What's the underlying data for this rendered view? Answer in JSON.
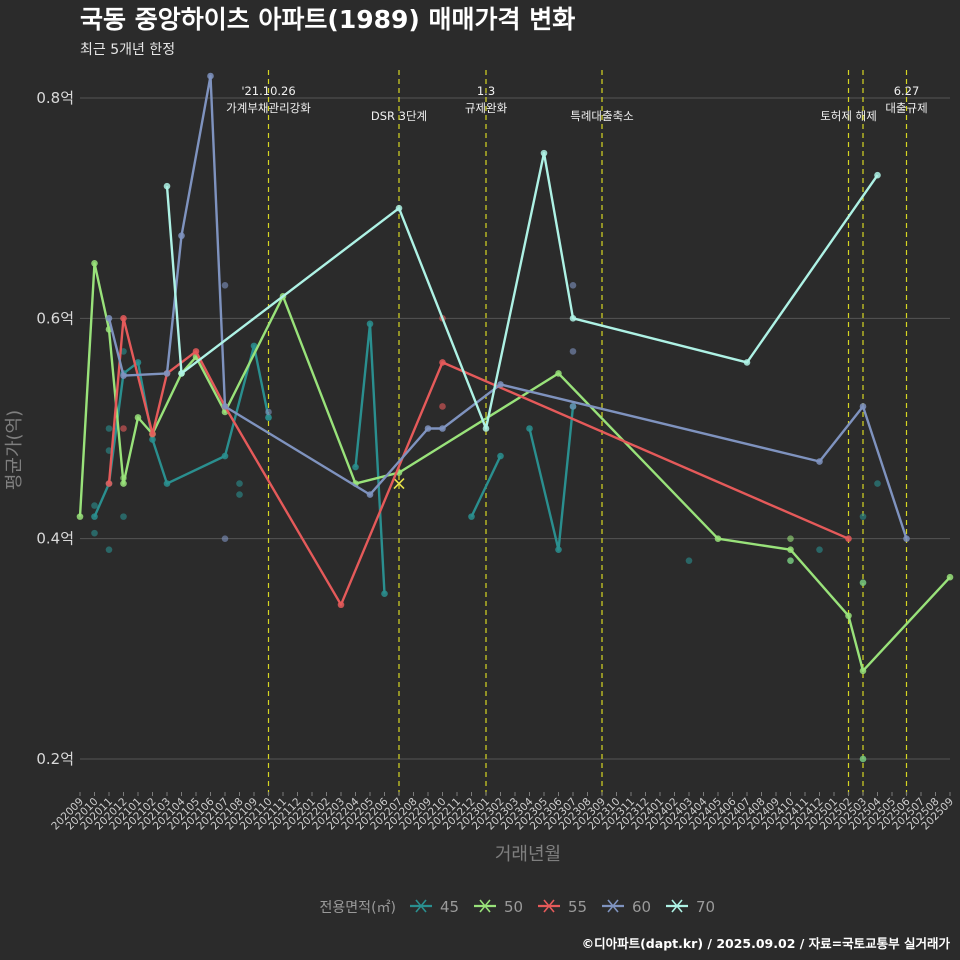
{
  "chart_data": {
    "type": "line",
    "title": "국동 중앙하이츠 아파트(1989) 매매가격 변화",
    "subtitle": "최근 5개년 한정",
    "xlabel": "거래년월",
    "ylabel": "평균가(억)",
    "ylim": [
      0.17,
      0.83
    ],
    "yticks": [
      {
        "value": 0.2,
        "label": "0.2억"
      },
      {
        "value": 0.4,
        "label": "0.4억"
      },
      {
        "value": 0.6,
        "label": "0.6억"
      },
      {
        "value": 0.8,
        "label": "0.8억"
      }
    ],
    "x_months": [
      "202009",
      "202010",
      "202011",
      "202012",
      "202101",
      "202102",
      "202103",
      "202104",
      "202105",
      "202106",
      "202107",
      "202108",
      "202109",
      "202110",
      "202111",
      "202112",
      "202201",
      "202202",
      "202203",
      "202204",
      "202205",
      "202206",
      "202207",
      "202208",
      "202209",
      "202210",
      "202211",
      "202212",
      "202301",
      "202302",
      "202303",
      "202304",
      "202305",
      "202306",
      "202307",
      "202308",
      "202309",
      "202310",
      "202311",
      "202312",
      "202401",
      "202402",
      "202403",
      "202404",
      "202405",
      "202406",
      "202407",
      "202408",
      "202409",
      "202410",
      "202411",
      "202412",
      "202501",
      "202502",
      "202503",
      "202504",
      "202505",
      "202506",
      "202507",
      "202508",
      "202509"
    ],
    "legend_title": "전용면적(㎡)",
    "legend_position": "bottom",
    "grid": true,
    "events": [
      {
        "x": "202110",
        "lines": [
          "'21.10.26",
          "가계부채관리강화"
        ]
      },
      {
        "x": "202207",
        "lines": [
          "DSR 3단계"
        ]
      },
      {
        "x": "202301",
        "lines": [
          "1.3",
          "규제완화"
        ]
      },
      {
        "x": "202309",
        "lines": [
          "특례대출축소"
        ]
      },
      {
        "x": "202502",
        "lines": [
          "토허제 해제"
        ]
      },
      {
        "x": "202503",
        "lines": []
      },
      {
        "x": "202506",
        "lines": [
          "6.27",
          "대출규제"
        ]
      }
    ],
    "series": [
      {
        "name": "45",
        "color": "#2a8f8f",
        "line": [
          [
            "202010",
            0.42
          ],
          [
            "202011",
            0.45
          ],
          [
            "202012",
            0.55
          ],
          [
            "202101",
            0.56
          ],
          [
            "202102",
            0.49
          ],
          [
            "202103",
            0.45
          ],
          [
            "202107",
            0.475
          ],
          [
            "202109",
            0.575
          ],
          [
            "202110",
            0.51
          ],
          null,
          [
            "202204",
            0.465
          ],
          [
            "202205",
            0.595
          ],
          [
            "202206",
            0.35
          ],
          null,
          [
            "202212",
            0.42
          ],
          [
            "202302",
            0.475
          ],
          null,
          [
            "202304",
            0.5
          ],
          [
            "202306",
            0.39
          ],
          [
            "202307",
            0.52
          ]
        ],
        "points": [
          [
            "202010",
            0.43
          ],
          [
            "202010",
            0.405
          ],
          [
            "202011",
            0.5
          ],
          [
            "202011",
            0.48
          ],
          [
            "202011",
            0.39
          ],
          [
            "202012",
            0.42
          ],
          [
            "202012",
            0.57
          ],
          [
            "202108",
            0.45
          ],
          [
            "202108",
            0.44
          ],
          [
            "202110",
            0.51
          ],
          [
            "202403",
            0.38
          ],
          [
            "202410",
            0.38
          ],
          [
            "202412",
            0.39
          ],
          [
            "202503",
            0.42
          ],
          [
            "202503",
            0.36
          ],
          [
            "202503",
            0.2
          ],
          [
            "202504",
            0.45
          ]
        ]
      },
      {
        "name": "50",
        "color": "#99e27a",
        "line": [
          [
            "202009",
            0.42
          ],
          [
            "202010",
            0.65
          ],
          [
            "202011",
            0.59
          ],
          [
            "202012",
            0.45
          ],
          [
            "202101",
            0.51
          ],
          [
            "202102",
            0.495
          ],
          [
            "202104",
            0.55
          ],
          [
            "202105",
            0.565
          ],
          [
            "202107",
            0.515
          ],
          [
            "202111",
            0.62
          ],
          [
            "202204",
            0.45
          ],
          [
            "202207",
            0.46
          ],
          [
            "202306",
            0.55
          ],
          [
            "202405",
            0.4
          ],
          [
            "202410",
            0.39
          ],
          [
            "202502",
            0.33
          ],
          [
            "202503",
            0.28
          ],
          [
            "202509",
            0.365
          ]
        ],
        "points": [
          [
            "202012",
            0.455
          ],
          [
            "202410",
            0.4
          ],
          [
            "202410",
            0.38
          ],
          [
            "202503",
            0.36
          ],
          [
            "202503",
            0.2
          ]
        ],
        "markers": [
          [
            "202207",
            0.45
          ]
        ]
      },
      {
        "name": "55",
        "color": "#e55a5a",
        "line": [
          [
            "202011",
            0.45
          ],
          [
            "202012",
            0.6
          ],
          [
            "202102",
            0.495
          ],
          [
            "202103",
            0.55
          ],
          [
            "202105",
            0.57
          ],
          [
            "202107",
            0.52
          ],
          [
            "202203",
            0.34
          ],
          [
            "202210",
            0.56
          ],
          [
            "202502",
            0.4
          ]
        ],
        "points": [
          [
            "202012",
            0.5
          ],
          [
            "202210",
            0.52
          ],
          [
            "202210",
            0.6
          ]
        ]
      },
      {
        "name": "60",
        "color": "#7f93bf",
        "line": [
          [
            "202011",
            0.6
          ],
          [
            "202012",
            0.548
          ],
          [
            "202103",
            0.55
          ],
          [
            "202104",
            0.675
          ],
          [
            "202106",
            0.82
          ],
          [
            "202107",
            0.52
          ],
          [
            "202205",
            0.44
          ],
          [
            "202209",
            0.5
          ],
          [
            "202210",
            0.5
          ],
          [
            "202302",
            0.54
          ],
          [
            "202412",
            0.47
          ],
          [
            "202503",
            0.52
          ],
          [
            "202506",
            0.4
          ]
        ],
        "points": [
          [
            "202107",
            0.63
          ],
          [
            "202107",
            0.4
          ],
          [
            "202110",
            0.515
          ],
          [
            "202307",
            0.52
          ],
          [
            "202307",
            0.63
          ],
          [
            "202307",
            0.57
          ]
        ]
      },
      {
        "name": "70",
        "color": "#aef2e5",
        "line": [
          [
            "202103",
            0.72
          ],
          [
            "202104",
            0.55
          ],
          [
            "202207",
            0.7
          ],
          [
            "202301",
            0.5
          ],
          [
            "202305",
            0.75
          ],
          [
            "202307",
            0.6
          ],
          [
            "202407",
            0.56
          ],
          [
            "202504",
            0.73
          ]
        ],
        "points": []
      }
    ]
  },
  "caption": "©디아파트(dapt.kr) / 2025.09.02 / 자료=국토교통부 실거래가"
}
